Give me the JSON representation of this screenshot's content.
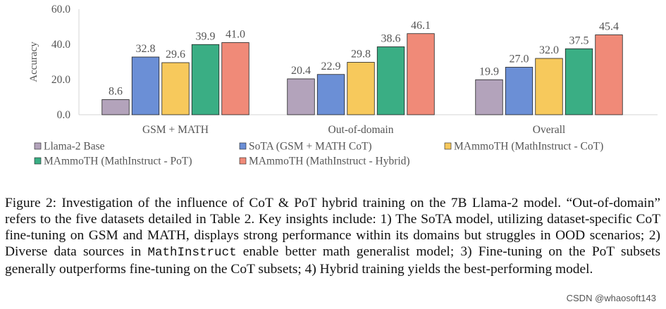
{
  "chart_data": {
    "type": "bar",
    "ylabel": "Accuracy",
    "ylim": [
      0,
      60
    ],
    "yticks": [
      "0.0",
      "20.0",
      "40.0",
      "60.0"
    ],
    "ytick_values": [
      0,
      20,
      40,
      60
    ],
    "grid": false,
    "categories": [
      "GSM + MATH",
      "Out-of-domain",
      "Overall"
    ],
    "series": [
      {
        "name": "Llama-2 Base",
        "color": "#b3a3bb",
        "values": [
          8.6,
          20.4,
          19.9
        ],
        "labels": [
          "8.6",
          "20.4",
          "19.9"
        ]
      },
      {
        "name": "SoTA (GSM + MATH CoT)",
        "color": "#6b8fd6",
        "values": [
          32.8,
          22.9,
          27.0
        ],
        "labels": [
          "32.8",
          "22.9",
          "27.0"
        ]
      },
      {
        "name": "MAmmoTH (MathInstruct - CoT)",
        "color": "#f7c95c",
        "values": [
          29.6,
          29.8,
          32.0
        ],
        "labels": [
          "29.6",
          "29.8",
          "32.0"
        ]
      },
      {
        "name": "MAmmoTH (MathInstruct - PoT)",
        "color": "#3aae84",
        "values": [
          39.9,
          38.6,
          37.5
        ],
        "labels": [
          "39.9",
          "38.6",
          "37.5"
        ]
      },
      {
        "name": "MAmmoTH (MathInstruct - Hybrid)",
        "color": "#f08a78",
        "values": [
          41.0,
          46.1,
          45.4
        ],
        "labels": [
          "41.0",
          "46.1",
          "45.4"
        ]
      }
    ],
    "legend_position": "bottom"
  },
  "caption": {
    "part1": "Figure 2: Investigation of the influence of CoT & PoT hybrid training on the 7B Llama-2 model. “Out-of-domain” refers to the five datasets detailed in Table 2. Key insights include: 1) The SoTA model, utilizing dataset-specific CoT fine-tuning on GSM and MATH, displays strong performance within its domains but struggles in OOD scenarios; 2) Diverse data sources in ",
    "mono": "MathInstruct",
    "part2": " enable better math generalist model; 3) Fine-tuning on the PoT subsets generally outperforms fine-tuning on the CoT subsets; 4) Hybrid training yields the best-performing model."
  },
  "watermark": "CSDN @whaosoft143"
}
